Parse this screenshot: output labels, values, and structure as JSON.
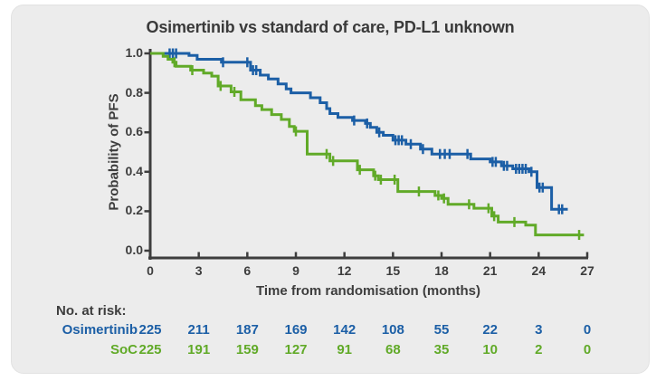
{
  "chart_data": {
    "type": "line",
    "subtype": "kaplan-meier-step",
    "title": "Osimertinib vs standard of care, PD-L1 unknown",
    "xlabel": "Time from randomisation (months)",
    "ylabel": "Probability of PFS",
    "xlim": [
      0,
      27
    ],
    "ylim": [
      0.0,
      1.0
    ],
    "grid": false,
    "legend_position": "none",
    "xticks": [
      0,
      3,
      6,
      9,
      12,
      15,
      18,
      21,
      24,
      27
    ],
    "yticks": [
      "1.0",
      "0.8",
      "0.6",
      "0.4",
      "0.2",
      "0.0"
    ],
    "axis_color": "#3d3d3d",
    "series": [
      {
        "name": "Osimertinib",
        "color": "#1c5fa6",
        "steps": [
          [
            0,
            1.0
          ],
          [
            2.4,
            0.99
          ],
          [
            2.9,
            0.97
          ],
          [
            4.4,
            0.955
          ],
          [
            6.2,
            0.915
          ],
          [
            6.8,
            0.89
          ],
          [
            7.3,
            0.87
          ],
          [
            7.9,
            0.845
          ],
          [
            8.4,
            0.82
          ],
          [
            8.7,
            0.8
          ],
          [
            9.9,
            0.775
          ],
          [
            10.5,
            0.75
          ],
          [
            10.9,
            0.72
          ],
          [
            11.1,
            0.695
          ],
          [
            11.6,
            0.675
          ],
          [
            12.5,
            0.66
          ],
          [
            13.3,
            0.645
          ],
          [
            13.6,
            0.625
          ],
          [
            14,
            0.6
          ],
          [
            14.4,
            0.585
          ],
          [
            15,
            0.56
          ],
          [
            15.8,
            0.54
          ],
          [
            16.7,
            0.515
          ],
          [
            17.4,
            0.49
          ],
          [
            19.8,
            0.465
          ],
          [
            21,
            0.45
          ],
          [
            21.7,
            0.43
          ],
          [
            22.4,
            0.415
          ],
          [
            23.4,
            0.4
          ],
          [
            23.9,
            0.32
          ],
          [
            24.8,
            0.21
          ]
        ],
        "end_time": 25.8,
        "censors": [
          [
            1.2,
            1
          ],
          [
            1.4,
            1
          ],
          [
            1.6,
            1
          ],
          [
            4.5,
            0.955
          ],
          [
            6,
            0.955
          ],
          [
            6.35,
            0.915
          ],
          [
            6.55,
            0.915
          ],
          [
            12.6,
            0.66
          ],
          [
            13.4,
            0.645
          ],
          [
            14.15,
            0.6
          ],
          [
            15.15,
            0.56
          ],
          [
            15.35,
            0.56
          ],
          [
            15.55,
            0.56
          ],
          [
            16.1,
            0.54
          ],
          [
            16.85,
            0.515
          ],
          [
            17.9,
            0.49
          ],
          [
            18.2,
            0.49
          ],
          [
            18.5,
            0.49
          ],
          [
            19.6,
            0.49
          ],
          [
            21.15,
            0.45
          ],
          [
            21.35,
            0.45
          ],
          [
            21.85,
            0.43
          ],
          [
            22.05,
            0.43
          ],
          [
            22.6,
            0.415
          ],
          [
            22.8,
            0.415
          ],
          [
            23,
            0.415
          ],
          [
            23.2,
            0.415
          ],
          [
            23.55,
            0.4
          ],
          [
            24.05,
            0.32
          ],
          [
            24.25,
            0.32
          ],
          [
            25.25,
            0.21
          ],
          [
            25.45,
            0.21
          ]
        ]
      },
      {
        "name": "SoC",
        "color": "#61aa28",
        "steps": [
          [
            0,
            1.0
          ],
          [
            0.8,
            0.985
          ],
          [
            1.1,
            0.97
          ],
          [
            1.4,
            0.955
          ],
          [
            1.6,
            0.935
          ],
          [
            2.5,
            0.915
          ],
          [
            3.3,
            0.9
          ],
          [
            3.8,
            0.885
          ],
          [
            4.2,
            0.835
          ],
          [
            5,
            0.805
          ],
          [
            5.6,
            0.765
          ],
          [
            6.5,
            0.735
          ],
          [
            6.9,
            0.715
          ],
          [
            7.5,
            0.69
          ],
          [
            8.1,
            0.665
          ],
          [
            8.6,
            0.63
          ],
          [
            8.9,
            0.605
          ],
          [
            9.7,
            0.49
          ],
          [
            11.1,
            0.455
          ],
          [
            12.8,
            0.41
          ],
          [
            13.8,
            0.38
          ],
          [
            14.1,
            0.36
          ],
          [
            15.3,
            0.3
          ],
          [
            17.6,
            0.28
          ],
          [
            18,
            0.265
          ],
          [
            18.4,
            0.235
          ],
          [
            20,
            0.215
          ],
          [
            21.1,
            0.175
          ],
          [
            21.5,
            0.145
          ],
          [
            23.2,
            0.13
          ],
          [
            23.8,
            0.08
          ]
        ],
        "end_time": 26.8,
        "censors": [
          [
            1.5,
            0.955
          ],
          [
            2.6,
            0.915
          ],
          [
            4.35,
            0.835
          ],
          [
            5.2,
            0.805
          ],
          [
            9,
            0.605
          ],
          [
            10.9,
            0.49
          ],
          [
            11.3,
            0.455
          ],
          [
            12.95,
            0.41
          ],
          [
            13.9,
            0.38
          ],
          [
            14.25,
            0.36
          ],
          [
            15.1,
            0.36
          ],
          [
            16.6,
            0.3
          ],
          [
            17.8,
            0.28
          ],
          [
            18.15,
            0.265
          ],
          [
            19.7,
            0.235
          ],
          [
            20.9,
            0.215
          ],
          [
            21.25,
            0.175
          ],
          [
            22.5,
            0.145
          ],
          [
            26.5,
            0.08
          ]
        ]
      }
    ],
    "risk_table": {
      "label": "No. at risk:",
      "times": [
        0,
        3,
        6,
        9,
        12,
        15,
        18,
        21,
        24,
        27
      ],
      "rows": [
        {
          "name": "Osimertinib",
          "color": "#1c5fa6",
          "values": [
            225,
            211,
            187,
            169,
            142,
            108,
            55,
            22,
            3,
            0
          ]
        },
        {
          "name": "SoC",
          "color": "#61aa28",
          "values": [
            225,
            191,
            159,
            127,
            91,
            68,
            35,
            10,
            2,
            0
          ]
        }
      ]
    }
  }
}
